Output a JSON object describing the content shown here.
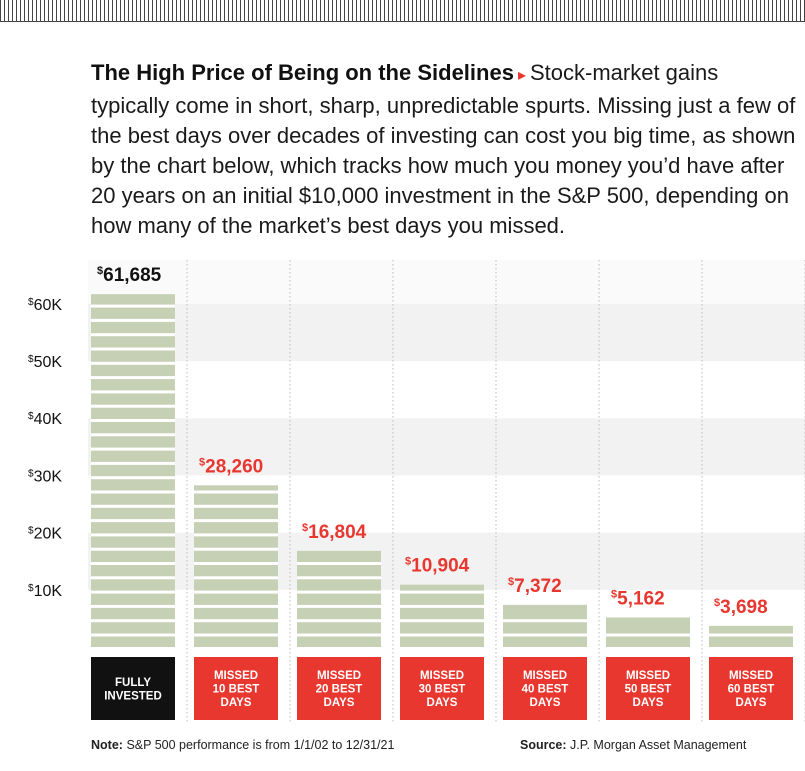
{
  "header": {
    "headline": "The High Price of Being on the Sidelines",
    "arrow_glyph": "▸",
    "body": "Stock-market gains typically come in short, sharp, unpredictable spurts. Missing just a few of the best days over decades of investing can cost you big time, as shown by the chart below, which tracks how much you money you’d have after 20 years on an initial $10,000 investment in the S&P 500, depending on how many of the market’s best days you missed."
  },
  "footer": {
    "note_label": "Note:",
    "note_text": "S&P 500 performance is from 1/1/02 to 12/31/21",
    "source_label": "Source:",
    "source_text": "J.P. Morgan Asset Management"
  },
  "chart_data": {
    "type": "bar",
    "title": "The High Price of Being on the Sidelines",
    "xlabel": "",
    "ylabel": "",
    "ylim": [
      0,
      65000
    ],
    "yticks": [
      10000,
      20000,
      30000,
      40000,
      50000,
      60000
    ],
    "ytick_labels": [
      "$10K",
      "$20K",
      "$30K",
      "$40K",
      "$50K",
      "$60K"
    ],
    "categories": [
      [
        "FULLY",
        "INVESTED"
      ],
      [
        "MISSED",
        "10 BEST",
        "DAYS"
      ],
      [
        "MISSED",
        "20 BEST",
        "DAYS"
      ],
      [
        "MISSED",
        "30 BEST",
        "DAYS"
      ],
      [
        "MISSED",
        "40 BEST",
        "DAYS"
      ],
      [
        "MISSED",
        "50 BEST",
        "DAYS"
      ],
      [
        "MISSED",
        "60 BEST",
        "DAYS"
      ]
    ],
    "values": [
      61685,
      28260,
      16804,
      10904,
      7372,
      5162,
      3698
    ],
    "value_labels": [
      "61,685",
      "28,260",
      "16,804",
      "10,904",
      "7,372",
      "5,162",
      "3,698"
    ],
    "currency_symbol": "$",
    "colors": {
      "bar": "#c6d0b5",
      "bar_stripe": "#ffffff",
      "band": "#f2f2f2",
      "label_highlight": "#111111",
      "label_default": "#e8372f",
      "box_highlight": "#111111",
      "box_default": "#e8372f",
      "box_text": "#ffffff",
      "separator": "#bbbbbb"
    }
  }
}
